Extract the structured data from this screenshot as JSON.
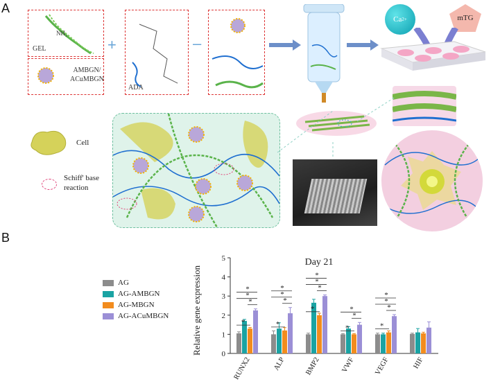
{
  "panels": {
    "a": "A",
    "b": "B"
  },
  "schematic": {
    "gel_label": "GEL",
    "nh2": "NH₂",
    "ambgn_label": "AMBGN/\nACuMBGN",
    "ada_label": "ADA",
    "ca_label": "Ca",
    "ca_sup": "2+",
    "mtg_label": "mTG",
    "cell_label": "Cell",
    "schiff_label": "Schiff' base\nreaction",
    "plus": "+",
    "minus": "–"
  },
  "chart_data": {
    "type": "bar",
    "title": "Day 21",
    "xlabel": "",
    "ylabel": "Relative gene expression",
    "ylim": [
      0,
      5
    ],
    "yticks": [
      0,
      1,
      2,
      3,
      4,
      5
    ],
    "categories": [
      "RUNX2",
      "ALP",
      "BMP2",
      "VWF",
      "VEGF",
      "HIF"
    ],
    "series": [
      {
        "name": "AG",
        "color": "#8c8c8c",
        "values": [
          1.05,
          1.0,
          1.0,
          1.0,
          1.0,
          1.02
        ],
        "errors": [
          0.08,
          0.18,
          0.06,
          0.04,
          0.06,
          0.04
        ]
      },
      {
        "name": "AG-AMBGN",
        "color": "#1aa3a3",
        "values": [
          1.7,
          1.3,
          2.65,
          1.3,
          1.0,
          1.1
        ],
        "errors": [
          0.08,
          0.3,
          0.18,
          0.1,
          0.06,
          0.2
        ]
      },
      {
        "name": "AG-MBGN",
        "color": "#f28c1e",
        "values": [
          1.3,
          1.2,
          2.0,
          1.0,
          1.1,
          1.05
        ],
        "errors": [
          0.06,
          0.15,
          0.1,
          0.04,
          0.08,
          0.06
        ]
      },
      {
        "name": "AG-ACuMBGN",
        "color": "#9b8fd6",
        "values": [
          2.25,
          2.1,
          3.0,
          1.5,
          1.95,
          1.35
        ],
        "errors": [
          0.08,
          0.3,
          0.06,
          0.12,
          0.08,
          0.3
        ]
      }
    ],
    "significance": "*",
    "legend_position": "left"
  }
}
